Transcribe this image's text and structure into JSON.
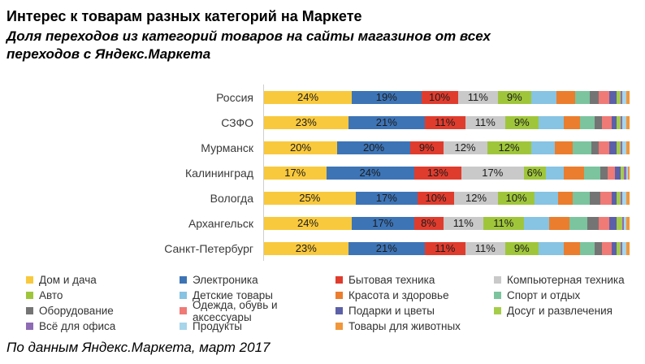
{
  "header": {
    "title": "Интерес к товарам разных категорий на Маркете",
    "subtitle": "Доля переходов из категорий товаров на сайты магазинов от всех переходов с Яндекс.Маркета"
  },
  "footer": {
    "text": "По данным Яндекс.Маркета, март 2017"
  },
  "chart_data": {
    "type": "bar",
    "orientation": "horizontal-stacked",
    "unit": "%",
    "xlim": [
      0,
      100
    ],
    "grid": false,
    "legend_position": "bottom",
    "legend_columns": 4,
    "value_label_format": "N%",
    "value_labels_note": "only first five series show % labels inside segments",
    "categories": [
      "Россия",
      "СЗФО",
      "Мурманск",
      "Калининград",
      "Вологда",
      "Архангельск",
      "Санкт-Петербург"
    ],
    "series": [
      {
        "name": "Дом и дача",
        "color": "#f9c93d",
        "labeled": true,
        "values": [
          24,
          23,
          20,
          17,
          25,
          24,
          23
        ]
      },
      {
        "name": "Электроника",
        "color": "#3d74b6",
        "labeled": true,
        "values": [
          19,
          21,
          20,
          24,
          17,
          17,
          21
        ]
      },
      {
        "name": "Бытовая техника",
        "color": "#e03c2e",
        "labeled": true,
        "values": [
          10,
          11,
          9,
          13,
          10,
          8,
          11
        ]
      },
      {
        "name": "Компьютерная техника",
        "color": "#c9c9c9",
        "labeled": true,
        "values": [
          11,
          11,
          12,
          17,
          12,
          11,
          11
        ]
      },
      {
        "name": "Авто",
        "color": "#9fc63b",
        "labeled": true,
        "values": [
          9,
          9,
          12,
          6,
          10,
          11,
          9
        ]
      },
      {
        "name": "Детские товары",
        "color": "#87c3e3",
        "labeled": false,
        "values": [
          7,
          7,
          6.5,
          5,
          6.5,
          7,
          7
        ]
      },
      {
        "name": "Красота и здоровье",
        "color": "#eb7d2e",
        "labeled": false,
        "values": [
          5,
          4.5,
          5,
          5.5,
          4,
          5.5,
          4.5
        ]
      },
      {
        "name": "Спорт и отдых",
        "color": "#7bc49e",
        "labeled": false,
        "values": [
          4,
          4,
          5,
          4.5,
          4.5,
          5,
          4
        ]
      },
      {
        "name": "Оборудование",
        "color": "#747474",
        "labeled": false,
        "values": [
          2.5,
          2,
          2,
          2,
          3,
          3,
          2
        ]
      },
      {
        "name": "Одежда, обувь и аксессуары",
        "color": "#ef7a76",
        "labeled": false,
        "values": [
          3,
          2.5,
          3,
          2,
          3,
          3,
          2.5
        ]
      },
      {
        "name": "Подарки и цветы",
        "color": "#5c60a7",
        "labeled": false,
        "values": [
          2,
          1.5,
          2,
          1.5,
          1.5,
          2,
          1.5
        ]
      },
      {
        "name": "Досуг и развлечения",
        "color": "#a6cd4a",
        "labeled": false,
        "values": [
          1,
          1,
          1,
          1,
          1,
          1.5,
          1
        ]
      },
      {
        "name": "Всё для офиса",
        "color": "#8e6bb4",
        "labeled": false,
        "values": [
          0.5,
          0.5,
          0.5,
          0.5,
          0.5,
          0.5,
          0.5
        ]
      },
      {
        "name": "Продукты",
        "color": "#a7d5ea",
        "labeled": false,
        "values": [
          1,
          1,
          1,
          0.5,
          1,
          0.5,
          1
        ]
      },
      {
        "name": "Товары для животных",
        "color": "#f0973c",
        "labeled": false,
        "values": [
          1,
          1,
          1,
          0.5,
          1,
          1,
          1
        ]
      }
    ]
  }
}
